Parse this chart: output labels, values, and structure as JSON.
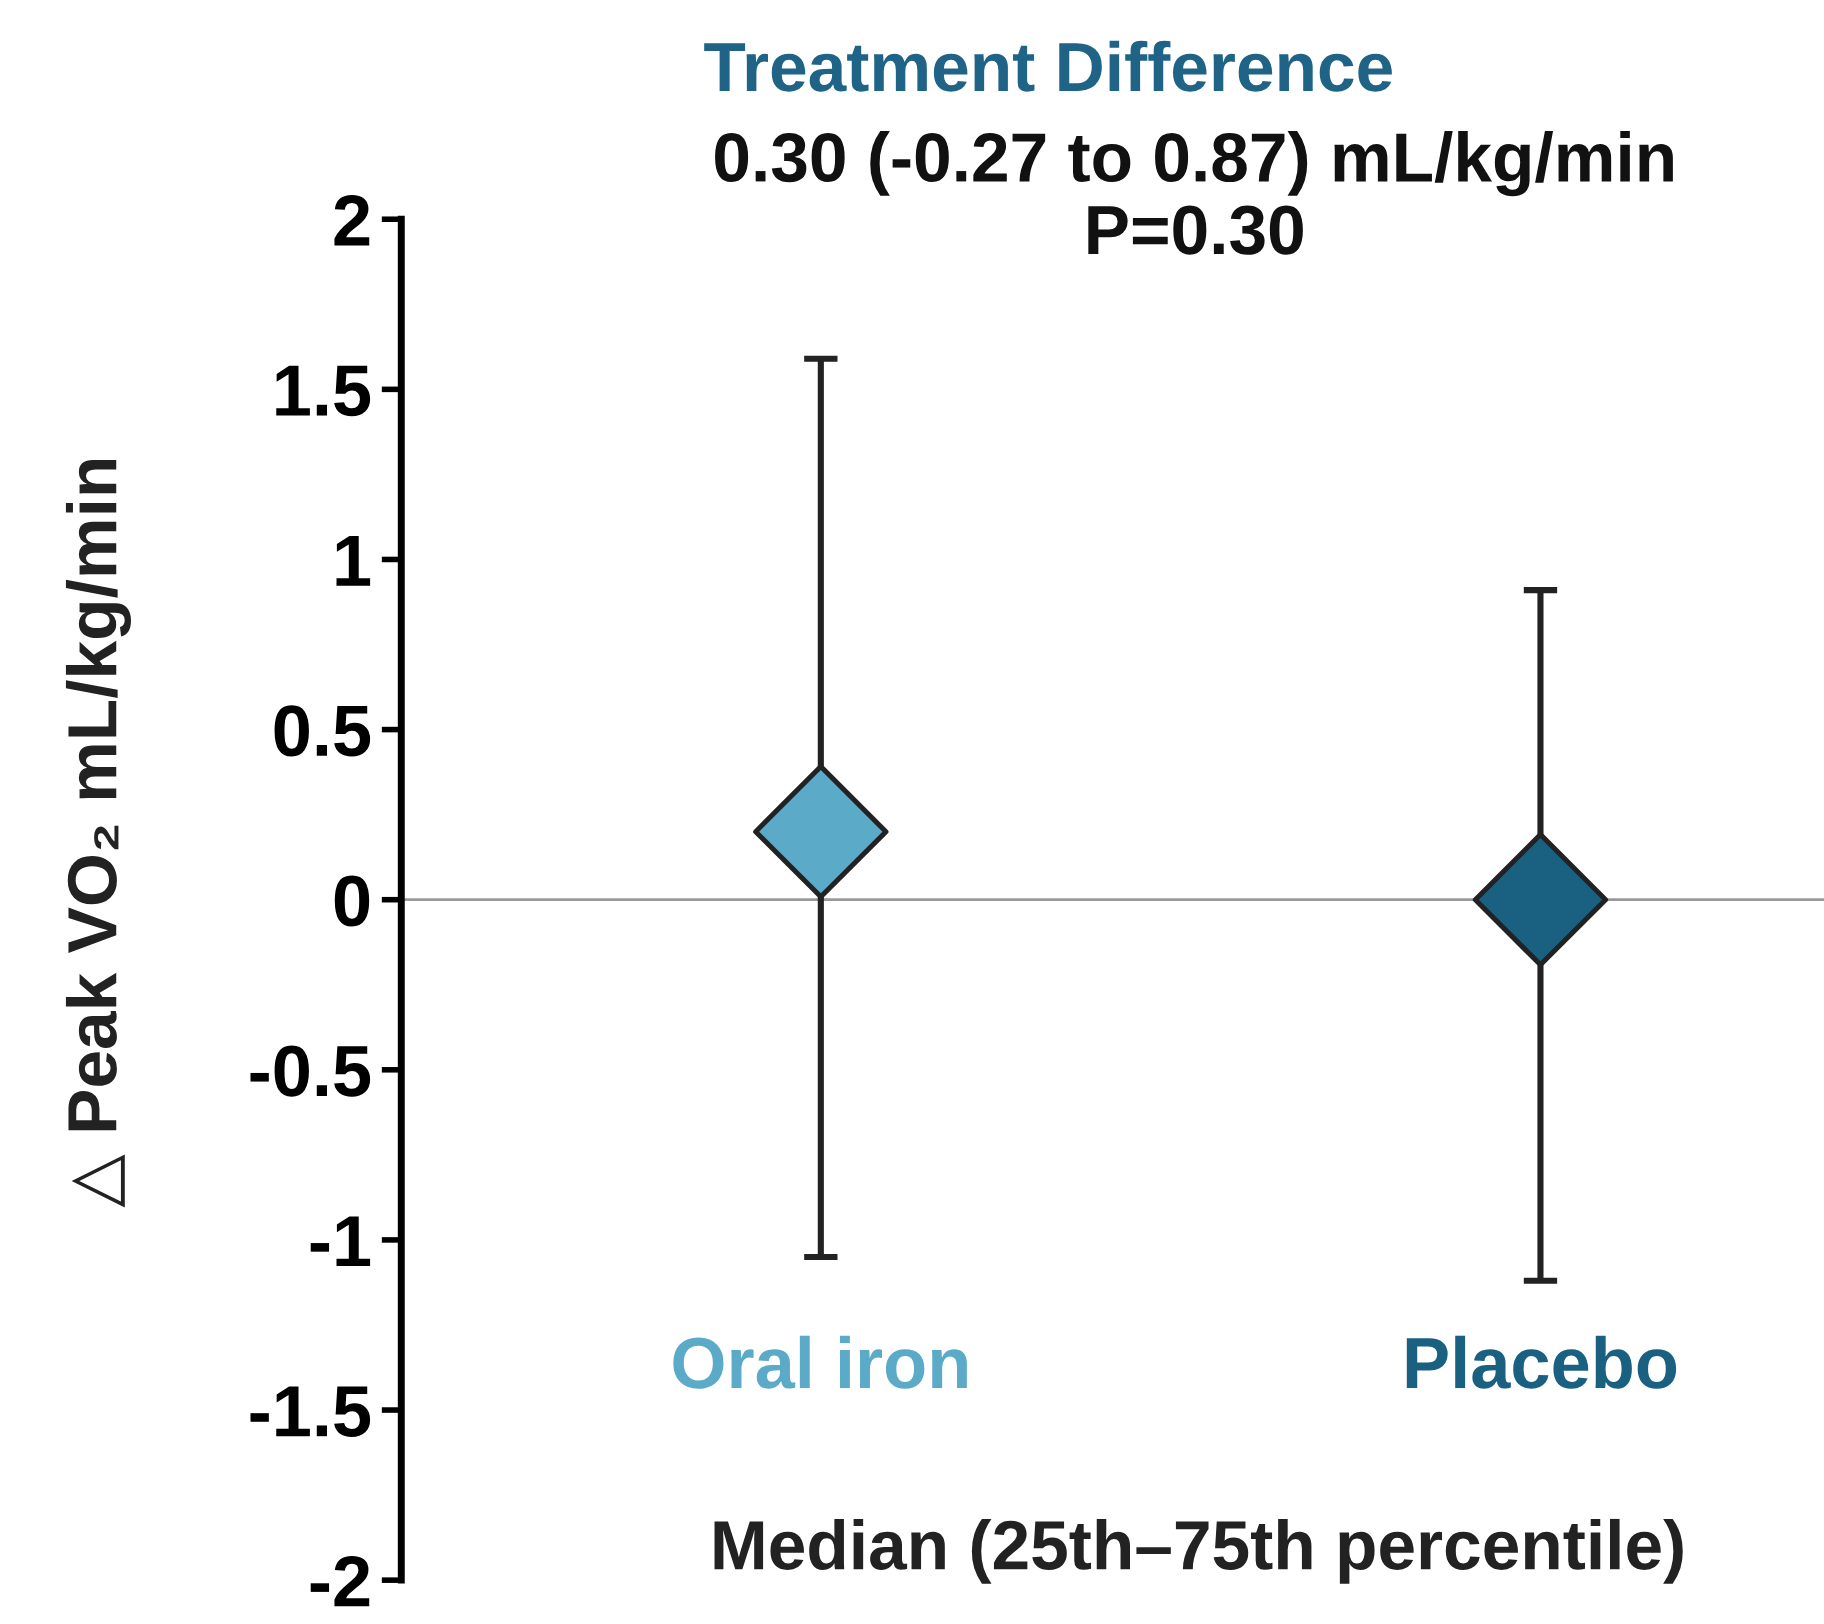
{
  "chart_data": {
    "type": "scatter",
    "title": "Treatment Difference",
    "subtitle": "0.30 (-0.27 to 0.87) mL/kg/min\nP=0.30",
    "xlabel": "Median (25th–75th percentile)",
    "ylabel": "△ Peak VO₂ mL/kg/min",
    "categories": [
      "Oral iron",
      "Placebo"
    ],
    "values": [
      0.2,
      0.0
    ],
    "colors": [
      "#5aaac8",
      "#1a6080"
    ],
    "errors": [
      [
        -1.05,
        1.59
      ],
      [
        -1.12,
        0.91
      ]
    ],
    "marker": "diamond",
    "ylim": [
      -2,
      2
    ],
    "yticks": [
      {
        "value": -2,
        "label": "-2"
      },
      {
        "value": -1.5,
        "label": "-1.5"
      },
      {
        "value": -1,
        "label": "-1"
      },
      {
        "value": -0.5,
        "label": "-0.5"
      },
      0,
      0.5,
      1,
      1.5,
      2
    ],
    "ref_lines": [
      {
        "axis": "y",
        "value": 0,
        "color": "#999999"
      }
    ],
    "grid": false,
    "legend": false
  }
}
